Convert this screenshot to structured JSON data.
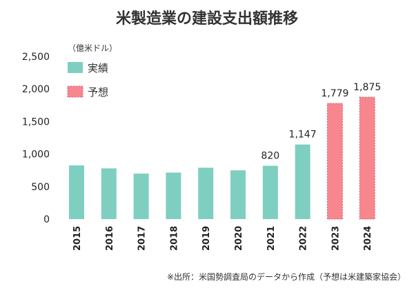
{
  "chart_data": {
    "type": "bar",
    "title": "米製造業の建設支出額推移",
    "unit": "（億米ドル）",
    "categories": [
      "2015",
      "2016",
      "2017",
      "2018",
      "2019",
      "2020",
      "2021",
      "2022",
      "2023",
      "2024"
    ],
    "values": [
      825,
      780,
      700,
      715,
      790,
      750,
      820,
      1147,
      1779,
      1875
    ],
    "kinds": [
      "actual",
      "actual",
      "actual",
      "actual",
      "actual",
      "actual",
      "actual",
      "actual",
      "forecast",
      "forecast"
    ],
    "data_labels": [
      "",
      "",
      "",
      "",
      "",
      "",
      "820",
      "1,147",
      "1,779",
      "1,875"
    ],
    "ylim": [
      0,
      2500
    ],
    "yticks": [
      0,
      500,
      1000,
      1500,
      2000,
      2500
    ],
    "ytick_labels": [
      "0",
      "500",
      "1,000",
      "1,500",
      "2,000",
      "2,500"
    ],
    "legend": [
      {
        "key": "actual",
        "label": "実績",
        "color": "#7ecfc0"
      },
      {
        "key": "forecast",
        "label": "予想",
        "color": "#f7868f"
      }
    ],
    "grid": false,
    "legend_position": "top-left"
  },
  "source": "※出所：米国勢調査局のデータから作成（予想は米建築家協会）"
}
